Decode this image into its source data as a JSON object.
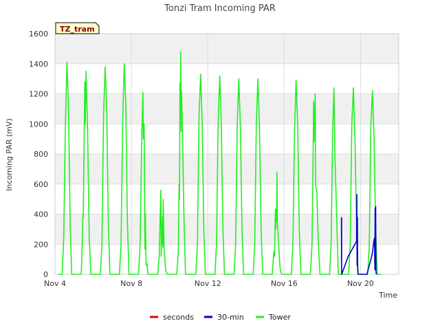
{
  "chart_data": {
    "type": "line",
    "title": "Tonzi Tram Incoming PAR",
    "badge": "TZ_tram",
    "xlabel": "Time",
    "ylabel": "Incoming PAR (mV)",
    "ylim": [
      0,
      1600
    ],
    "yticks": [
      0,
      200,
      400,
      600,
      800,
      1000,
      1200,
      1400,
      1600
    ],
    "xlim": [
      "2024-11-04",
      "2024-11-22"
    ],
    "xticks": [
      {
        "date": "2024-11-04",
        "label": "Nov 4"
      },
      {
        "date": "2024-11-08",
        "label": "Nov 8"
      },
      {
        "date": "2024-11-12",
        "label": "Nov 12"
      },
      {
        "date": "2024-11-16",
        "label": "Nov 16"
      },
      {
        "date": "2024-11-20",
        "label": "Nov 20"
      }
    ],
    "grid": true,
    "legend_position": "bottom",
    "series": [
      {
        "name": "seconds",
        "color": "#dd0000",
        "points": []
      },
      {
        "name": "30-min",
        "color": "#0000cc",
        "points": [
          [
            "2024-11-19 00:00",
            380
          ],
          [
            "2024-11-19 00:04",
            80
          ],
          [
            "2024-11-19 00:06",
            375
          ],
          [
            "2024-11-19 00:09",
            90
          ],
          [
            "2024-11-19 00:11",
            370
          ],
          [
            "2024-11-19 00:14",
            95
          ],
          [
            "2024-11-19 00:16",
            5
          ],
          [
            "2024-11-19 00:20",
            0
          ],
          [
            "2024-11-19 08:30",
            120
          ],
          [
            "2024-11-19 17:00",
            200
          ],
          [
            "2024-11-19 19:00",
            220
          ],
          [
            "2024-11-19 19:20",
            530
          ],
          [
            "2024-11-19 19:40",
            60
          ],
          [
            "2024-11-19 20:00",
            380
          ],
          [
            "2024-11-19 20:20",
            50
          ],
          [
            "2024-11-19 20:40",
            5
          ],
          [
            "2024-11-19 21:30",
            0
          ],
          [
            "2024-11-20 08:00",
            0
          ],
          [
            "2024-11-20 14:30",
            130
          ],
          [
            "2024-11-20 17:00",
            230
          ],
          [
            "2024-11-20 17:30",
            240
          ],
          [
            "2024-11-20 18:00",
            30
          ],
          [
            "2024-11-20 18:20",
            440
          ],
          [
            "2024-11-20 18:40",
            60
          ],
          [
            "2024-11-20 19:00",
            450
          ],
          [
            "2024-11-20 19:20",
            30
          ],
          [
            "2024-11-20 19:40",
            5
          ],
          [
            "2024-11-20 20:30",
            0
          ]
        ]
      },
      {
        "name": "Tower",
        "color": "#22ee22",
        "points": [
          [
            "2024-11-04 04:00",
            0
          ],
          [
            "2024-11-04 09:00",
            0
          ],
          [
            "2024-11-04 11:00",
            250
          ],
          [
            "2024-11-04 13:00",
            980
          ],
          [
            "2024-11-04 15:00",
            1410
          ],
          [
            "2024-11-04 17:00",
            1100
          ],
          [
            "2024-11-04 19:00",
            350
          ],
          [
            "2024-11-04 21:00",
            0
          ],
          [
            "2024-11-05 09:00",
            0
          ],
          [
            "2024-11-05 10:30",
            250
          ],
          [
            "2024-11-05 11:00",
            400
          ],
          [
            "2024-11-05 11:30",
            380
          ],
          [
            "2024-11-05 12:30",
            850
          ],
          [
            "2024-11-05 13:30",
            1280
          ],
          [
            "2024-11-05 14:00",
            1000
          ],
          [
            "2024-11-05 15:00",
            1350
          ],
          [
            "2024-11-05 17:00",
            950
          ],
          [
            "2024-11-05 19:00",
            250
          ],
          [
            "2024-11-05 21:00",
            0
          ],
          [
            "2024-11-06 09:00",
            0
          ],
          [
            "2024-11-06 11:00",
            200
          ],
          [
            "2024-11-06 13:00",
            1050
          ],
          [
            "2024-11-06 15:00",
            1380
          ],
          [
            "2024-11-06 17:00",
            1100
          ],
          [
            "2024-11-06 19:00",
            350
          ],
          [
            "2024-11-06 21:00",
            0
          ],
          [
            "2024-11-07 09:00",
            0
          ],
          [
            "2024-11-07 11:00",
            200
          ],
          [
            "2024-11-07 13:00",
            1000
          ],
          [
            "2024-11-07 15:00",
            1400
          ],
          [
            "2024-11-07 17:00",
            1120
          ],
          [
            "2024-11-07 19:00",
            350
          ],
          [
            "2024-11-07 21:00",
            0
          ],
          [
            "2024-11-08 09:00",
            0
          ],
          [
            "2024-11-08 11:00",
            200
          ],
          [
            "2024-11-08 13:00",
            900
          ],
          [
            "2024-11-08 14:30",
            1210
          ],
          [
            "2024-11-08 15:00",
            900
          ],
          [
            "2024-11-08 16:00",
            1000
          ],
          [
            "2024-11-08 17:00",
            170
          ],
          [
            "2024-11-08 17:30",
            410
          ],
          [
            "2024-11-08 18:30",
            60
          ],
          [
            "2024-11-08 19:30",
            70
          ],
          [
            "2024-11-08 21:00",
            0
          ],
          [
            "2024-11-09 09:00",
            0
          ],
          [
            "2024-11-09 11:00",
            120
          ],
          [
            "2024-11-09 12:00",
            350
          ],
          [
            "2024-11-09 13:00",
            560
          ],
          [
            "2024-11-09 13:30",
            120
          ],
          [
            "2024-11-09 14:00",
            330
          ],
          [
            "2024-11-09 14:30",
            200
          ],
          [
            "2024-11-09 15:00",
            380
          ],
          [
            "2024-11-09 15:30",
            180
          ],
          [
            "2024-11-09 16:00",
            500
          ],
          [
            "2024-11-09 17:00",
            180
          ],
          [
            "2024-11-09 19:00",
            30
          ],
          [
            "2024-11-09 21:00",
            0
          ],
          [
            "2024-11-10 09:00",
            0
          ],
          [
            "2024-11-10 11:00",
            150
          ],
          [
            "2024-11-10 12:00",
            600
          ],
          [
            "2024-11-10 12:30",
            500
          ],
          [
            "2024-11-10 13:00",
            1270
          ],
          [
            "2024-11-10 13:30",
            1100
          ],
          [
            "2024-11-10 14:00",
            1480
          ],
          [
            "2024-11-10 14:30",
            950
          ],
          [
            "2024-11-10 15:00",
            1220
          ],
          [
            "2024-11-10 16:00",
            1000
          ],
          [
            "2024-11-10 18:00",
            400
          ],
          [
            "2024-11-10 20:00",
            0
          ],
          [
            "2024-11-11 09:00",
            0
          ],
          [
            "2024-11-11 11:00",
            200
          ],
          [
            "2024-11-11 13:00",
            1050
          ],
          [
            "2024-11-11 15:00",
            1330
          ],
          [
            "2024-11-11 17:00",
            1000
          ],
          [
            "2024-11-11 19:00",
            300
          ],
          [
            "2024-11-11 21:00",
            0
          ],
          [
            "2024-11-12 09:00",
            0
          ],
          [
            "2024-11-12 11:00",
            200
          ],
          [
            "2024-11-12 13:00",
            1000
          ],
          [
            "2024-11-12 15:00",
            1320
          ],
          [
            "2024-11-12 17:00",
            1000
          ],
          [
            "2024-11-12 19:00",
            300
          ],
          [
            "2024-11-12 21:00",
            0
          ],
          [
            "2024-11-13 09:00",
            0
          ],
          [
            "2024-11-13 11:00",
            200
          ],
          [
            "2024-11-13 13:00",
            1000
          ],
          [
            "2024-11-13 15:00",
            1300
          ],
          [
            "2024-11-13 17:00",
            980
          ],
          [
            "2024-11-13 19:00",
            300
          ],
          [
            "2024-11-13 21:00",
            0
          ],
          [
            "2024-11-14 09:00",
            0
          ],
          [
            "2024-11-14 11:00",
            200
          ],
          [
            "2024-11-14 13:00",
            1000
          ],
          [
            "2024-11-14 15:00",
            1300
          ],
          [
            "2024-11-14 17:00",
            980
          ],
          [
            "2024-11-14 19:00",
            300
          ],
          [
            "2024-11-14 21:00",
            0
          ],
          [
            "2024-11-15 09:00",
            0
          ],
          [
            "2024-11-15 11:00",
            150
          ],
          [
            "2024-11-15 12:00",
            120
          ],
          [
            "2024-11-15 13:00",
            430
          ],
          [
            "2024-11-15 13:30",
            300
          ],
          [
            "2024-11-15 14:00",
            440
          ],
          [
            "2024-11-15 14:30",
            350
          ],
          [
            "2024-11-15 15:00",
            680
          ],
          [
            "2024-11-15 15:30",
            350
          ],
          [
            "2024-11-15 17:00",
            200
          ],
          [
            "2024-11-15 19:00",
            30
          ],
          [
            "2024-11-15 21:00",
            0
          ],
          [
            "2024-11-16 09:00",
            0
          ],
          [
            "2024-11-16 11:00",
            200
          ],
          [
            "2024-11-16 13:00",
            950
          ],
          [
            "2024-11-16 15:00",
            1290
          ],
          [
            "2024-11-16 17:00",
            980
          ],
          [
            "2024-11-16 19:00",
            300
          ],
          [
            "2024-11-16 21:00",
            0
          ],
          [
            "2024-11-17 09:00",
            0
          ],
          [
            "2024-11-17 11:00",
            200
          ],
          [
            "2024-11-17 12:30",
            850
          ],
          [
            "2024-11-17 13:00",
            1150
          ],
          [
            "2024-11-17 13:30",
            880
          ],
          [
            "2024-11-17 15:00",
            1200
          ],
          [
            "2024-11-17 15:30",
            600
          ],
          [
            "2024-11-17 17:00",
            550
          ],
          [
            "2024-11-17 19:00",
            200
          ],
          [
            "2024-11-17 21:00",
            0
          ],
          [
            "2024-11-18 09:00",
            0
          ],
          [
            "2024-11-18 11:00",
            200
          ],
          [
            "2024-11-18 13:00",
            950
          ],
          [
            "2024-11-18 14:30",
            1240
          ],
          [
            "2024-11-18 15:30",
            900
          ],
          [
            "2024-11-18 16:00",
            740
          ],
          [
            "2024-11-18 16:30",
            660
          ],
          [
            "2024-11-18 18:00",
            380
          ],
          [
            "2024-11-18 20:00",
            0
          ],
          [
            "2024-11-19 09:00",
            0
          ],
          [
            "2024-11-19 11:00",
            200
          ],
          [
            "2024-11-19 13:00",
            1000
          ],
          [
            "2024-11-19 15:00",
            1240
          ],
          [
            "2024-11-19 17:00",
            900
          ],
          [
            "2024-11-19 19:00",
            300
          ],
          [
            "2024-11-19 21:00",
            0
          ],
          [
            "2024-11-20 09:00",
            0
          ],
          [
            "2024-11-20 11:00",
            200
          ],
          [
            "2024-11-20 13:00",
            1000
          ],
          [
            "2024-11-20 15:00",
            1220
          ],
          [
            "2024-11-20 17:00",
            900
          ],
          [
            "2024-11-20 19:00",
            300
          ],
          [
            "2024-11-20 21:00",
            0
          ],
          [
            "2024-11-21 02:00",
            0
          ]
        ]
      }
    ]
  }
}
